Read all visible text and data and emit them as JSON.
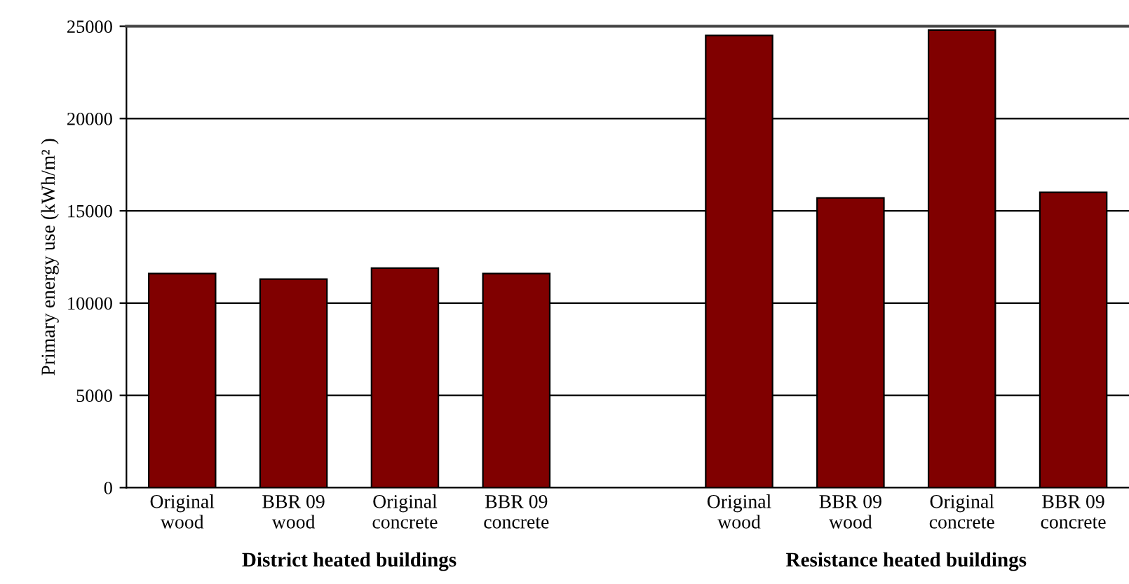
{
  "chart_data": {
    "type": "bar",
    "ylabel": "Primary energy use (kWh/m² )",
    "categories": [
      "Original\nwood",
      "BBR 09\nwood",
      "Original\nconcrete",
      "BBR 09\nconcrete",
      null,
      "Original\nwood",
      "BBR 09\nwood",
      "Original\nconcrete",
      "BBR 09\nconcrete"
    ],
    "values": [
      11600,
      11300,
      11900,
      11600,
      null,
      24500,
      15700,
      24800,
      16000
    ],
    "color": "#800000",
    "ylim": [
      0,
      25000
    ],
    "yticks": [
      0,
      5000,
      10000,
      15000,
      20000,
      25000
    ],
    "grid": "y",
    "legend": false,
    "annotations": [
      "District heated buildings",
      "Resistance heated buildings"
    ]
  }
}
